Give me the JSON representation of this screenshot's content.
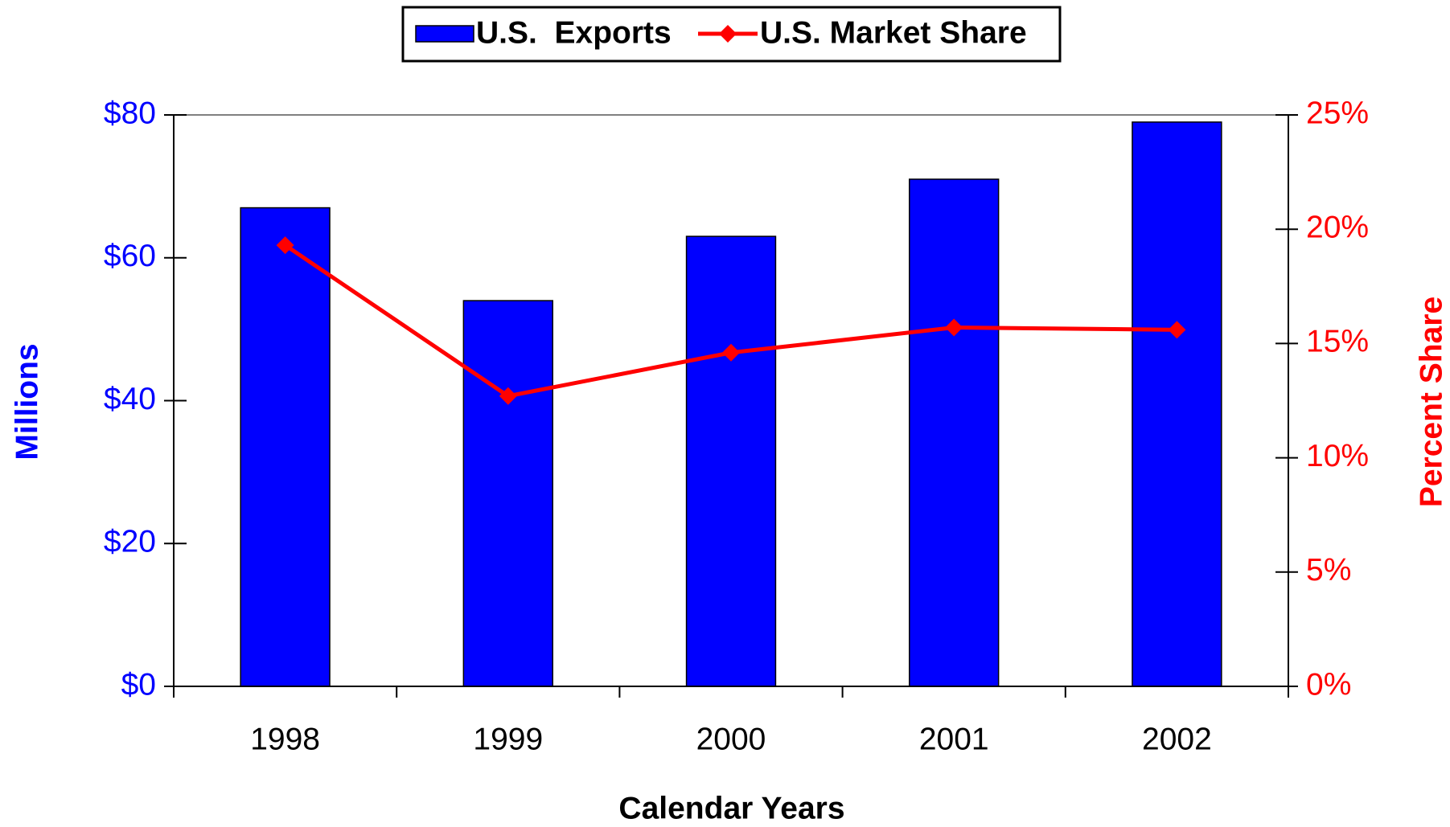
{
  "chart_data": {
    "type": "bar_line",
    "categories": [
      "1998",
      "1999",
      "2000",
      "2001",
      "2002"
    ],
    "series": [
      {
        "name": "U.S.  Exports",
        "type": "bar",
        "color": "#0000ff",
        "axis": "y",
        "values": [
          67,
          54,
          63,
          71,
          79
        ]
      },
      {
        "name": "U.S. Market Share",
        "type": "line",
        "color": "#ff0000",
        "axis": "y2",
        "values": [
          19.3,
          12.7,
          14.6,
          15.7,
          15.6
        ]
      }
    ],
    "xlabel": "Calendar Years",
    "ylabel": "Millions",
    "y2label": "Percent Share",
    "ylim": [
      0,
      80
    ],
    "yticks": [
      {
        "value": 0,
        "label": "$0"
      },
      {
        "value": 20,
        "label": "$20"
      },
      {
        "value": 40,
        "label": "$40"
      },
      {
        "value": 60,
        "label": "$60"
      },
      {
        "value": 80,
        "label": "$80"
      }
    ],
    "y2lim": [
      0,
      25
    ],
    "y2ticks": [
      {
        "value": 0,
        "label": "0%"
      },
      {
        "value": 5,
        "label": "5%"
      },
      {
        "value": 10,
        "label": "10%"
      },
      {
        "value": 15,
        "label": "15%"
      },
      {
        "value": 20,
        "label": "20%"
      },
      {
        "value": 25,
        "label": "25%"
      }
    ],
    "legend": "top"
  }
}
